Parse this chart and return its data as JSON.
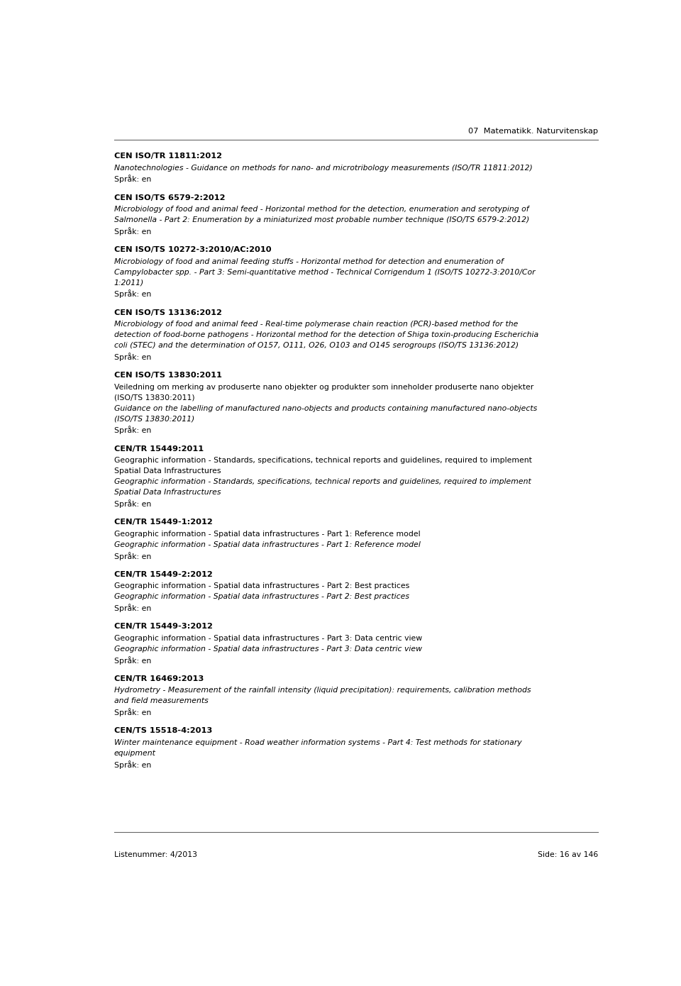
{
  "header_right": "07  Matematikk. Naturvitenskap",
  "footer_left": "Listenummer: 4/2013",
  "footer_right": "Side: 16 av 146",
  "bg_color": "#ffffff",
  "text_color": "#000000",
  "entries": [
    {
      "title": "CEN ISO/TR 11811:2012",
      "lines": [
        {
          "text": "Nanotechnologies - Guidance on methods for nano- and microtribology measurements (ISO/TR 11811:2012)",
          "italic": true
        },
        {
          "text": "Språk: en",
          "italic": false
        }
      ]
    },
    {
      "title": "CEN ISO/TS 6579-2:2012",
      "lines": [
        {
          "text": "Microbiology of food and animal feed - Horizontal method for the detection, enumeration and serotyping of Salmonella - Part 2: Enumeration by a miniaturized most probable number technique (ISO/TS 6579-2:2012)",
          "italic": true
        },
        {
          "text": "Språk: en",
          "italic": false
        }
      ]
    },
    {
      "title": "CEN ISO/TS 10272-3:2010/AC:2010",
      "lines": [
        {
          "text": "Microbiology of food and animal feeding stuffs - Horizontal method for detection and enumeration of Campylobacter spp. - Part 3: Semi-quantitative method - Technical Corrigendum 1 (ISO/TS 10272-3:2010/Cor 1:2011)",
          "italic": true
        },
        {
          "text": "Språk: en",
          "italic": false
        }
      ]
    },
    {
      "title": "CEN ISO/TS 13136:2012",
      "lines": [
        {
          "text": "Microbiology of food and animal feed - Real-time polymerase chain reaction (PCR)-based method for the detection of food-borne pathogens - Horizontal method for the detection of Shiga toxin-producing Escherichia coli (STEC) and the determination of O157, O111, O26, O103 and O145 serogroups (ISO/TS 13136:2012)",
          "italic": true
        },
        {
          "text": "Språk: en",
          "italic": false
        }
      ]
    },
    {
      "title": "CEN ISO/TS 13830:2011",
      "lines": [
        {
          "text": "Veiledning om merking av produserte nano objekter og produkter som inneholder produserte nano objekter (ISO/TS 13830:2011)",
          "italic": false
        },
        {
          "text": "Guidance on the labelling of manufactured nano-objects and products containing manufactured nano-objects (ISO/TS 13830:2011)",
          "italic": true
        },
        {
          "text": "Språk: en",
          "italic": false
        }
      ]
    },
    {
      "title": "CEN/TR 15449:2011",
      "lines": [
        {
          "text": "Geographic information - Standards, specifications, technical reports and guidelines, required to implement Spatial Data Infrastructures",
          "italic": false
        },
        {
          "text": "Geographic information - Standards, specifications, technical reports and guidelines, required to implement Spatial Data Infrastructures",
          "italic": true
        },
        {
          "text": "Språk: en",
          "italic": false
        }
      ]
    },
    {
      "title": "CEN/TR 15449-1:2012",
      "lines": [
        {
          "text": "Geographic information - Spatial data infrastructures - Part 1: Reference model",
          "italic": false
        },
        {
          "text": "Geographic information - Spatial data infrastructures - Part 1: Reference model",
          "italic": true
        },
        {
          "text": "Språk: en",
          "italic": false
        }
      ]
    },
    {
      "title": "CEN/TR 15449-2:2012",
      "lines": [
        {
          "text": "Geographic information - Spatial data infrastructures - Part 2: Best practices",
          "italic": false
        },
        {
          "text": "Geographic information - Spatial data infrastructures - Part 2: Best practices",
          "italic": true
        },
        {
          "text": "Språk: en",
          "italic": false
        }
      ]
    },
    {
      "title": "CEN/TR 15449-3:2012",
      "lines": [
        {
          "text": "Geographic information - Spatial data infrastructures - Part 3: Data centric view",
          "italic": false
        },
        {
          "text": "Geographic information - Spatial data infrastructures - Part 3: Data centric view",
          "italic": true
        },
        {
          "text": "Språk: en",
          "italic": false
        }
      ]
    },
    {
      "title": "CEN/TR 16469:2013",
      "lines": [
        {
          "text": "Hydrometry - Measurement of the rainfall intensity (liquid precipitation): requirements, calibration methods and field measurements",
          "italic": true
        },
        {
          "text": "Språk: en",
          "italic": false
        }
      ]
    },
    {
      "title": "CEN/TS 15518-4:2013",
      "lines": [
        {
          "text": "Winter maintenance equipment - Road weather information systems - Part 4: Test methods for stationary equipment",
          "italic": true
        },
        {
          "text": "Språk: en",
          "italic": false
        }
      ]
    }
  ]
}
